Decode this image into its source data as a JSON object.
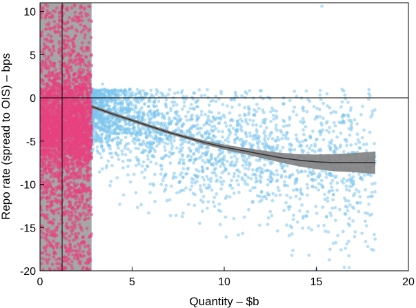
{
  "chart_data": {
    "type": "scatter",
    "title": "",
    "xlabel": "Quantity – $b",
    "ylabel": "Repo rate (spread to OIS) – bps",
    "xlim": [
      0,
      20
    ],
    "ylim": [
      -20,
      11
    ],
    "x_ticks": [
      0,
      5,
      10,
      15,
      20
    ],
    "y_ticks": [
      10,
      5,
      0,
      -5,
      -10,
      -15,
      -20
    ],
    "grid": false,
    "legend": "none",
    "reference_line_y": 0,
    "reference_line_x": 1.2,
    "shaded_region_x": [
      0,
      2.8
    ],
    "colors": {
      "series_below_threshold": "#e8417f",
      "series_above_threshold": "#7cc4ec",
      "shaded_region": "#a6a6a6",
      "fit_line": "#333333",
      "fit_band": "#808080"
    },
    "series": [
      {
        "color": "#e8417f",
        "cloud": {
          "x_range": [
            0,
            2.8
          ],
          "y_center": -3.5,
          "y_spread": 3.2,
          "approx_points": 3000
        }
      },
      {
        "color": "#7cc4ec",
        "cloud": {
          "x_range": [
            2.8,
            18.2
          ],
          "approx_points": 2400
        }
      }
    ],
    "fit": {
      "x": [
        2.8,
        4,
        5,
        6,
        7,
        8,
        9,
        10,
        11,
        12,
        13,
        14,
        15,
        16,
        17,
        18.2
      ],
      "y": [
        -1.0,
        -1.9,
        -2.6,
        -3.3,
        -4.0,
        -4.6,
        -5.2,
        -5.7,
        -6.1,
        -6.5,
        -6.9,
        -7.2,
        -7.4,
        -7.5,
        -7.5,
        -7.5
      ],
      "band": [
        0.2,
        0.2,
        0.2,
        0.2,
        0.2,
        0.2,
        0.25,
        0.3,
        0.35,
        0.45,
        0.55,
        0.7,
        0.85,
        1.0,
        1.1,
        1.3
      ]
    }
  }
}
